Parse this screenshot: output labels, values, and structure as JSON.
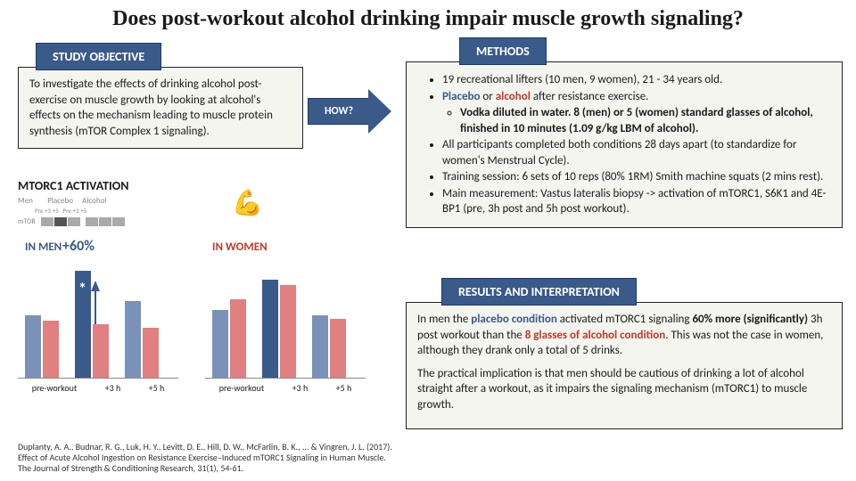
{
  "title": "Does post-workout alcohol drinking impair muscle growth signaling?",
  "headings": {
    "objective": "STUDY OBJECTIVE",
    "methods": "METHODS",
    "results": "RESULTS AND INTERPRETATION",
    "how": "HOW?"
  },
  "objective_text": "To investigate the effects of drinking alcohol post-exercise on muscle growth by looking at alcohol's effects on the mechanism leading to muscle protein synthesis (mTOR Complex 1 signaling).",
  "methods": {
    "m1": "19 recreational lifters (10 men, 9 women), 21 - 34 years old.",
    "m2a": "Placebo",
    "m2b": " or ",
    "m2c": "alcohol",
    "m2d": " after resistance exercise.",
    "m2_sub": "Vodka diluted in water. 8 (men) or 5 (women) standard glasses of alcohol, finished in 10 minutes (1.09 g/kg LBM of alcohol).",
    "m3": "All participants completed both conditions 28 days apart (to standardize for women's Menstrual Cycle).",
    "m4": "Training session: 6 sets of 10 reps (80% 1RM) Smith machine squats (2 mins rest).",
    "m5": "Main measurement: Vastus lateralis biopsy -> activation of mTORC1, S6K1 and 4E-BP1 (pre, 3h post and 5h post workout)."
  },
  "results": {
    "p1a": "In men the ",
    "p1_placebo": "placebo condition",
    "p1b": " activated mTORC1 signaling ",
    "p1_60": "60% more (significantly)",
    "p1c": " 3h post workout than the ",
    "p1_alc": "8 glasses of alcohol condition",
    "p1d": ". This was not the case in women, although they drank only a total of 5 drinks.",
    "p2": "The practical implication is that men should be cautious of drinking a lot of alcohol straight after a workout, as it impairs the signaling mechanism (mTORC1) to muscle growth."
  },
  "chart": {
    "super_label": "MTORC1 ACTIVATION",
    "men_label": "IN MEN",
    "women_label": "IN WOMEN",
    "plus60": "+60%",
    "star": "*",
    "xticks": {
      "t1": "pre-workout",
      "t2": "+3 h",
      "t3": "+5 h"
    },
    "men_bars": {
      "pre_pl": 70,
      "pre_al": 64,
      "h3_pl": 120,
      "h3_al": 60,
      "h5_pl": 86,
      "h5_al": 56
    },
    "women_bars": {
      "pre_pl": 76,
      "pre_al": 88,
      "h3_pl": 110,
      "h3_al": 104,
      "h5_pl": 70,
      "h5_al": 66
    },
    "colors": {
      "placebo": "#7a92b8",
      "placebo_hi": "#3a5a8a",
      "alcohol": "#e08080"
    }
  },
  "western": {
    "men": "Men",
    "mtor": "mTOR",
    "placebo": "Placebo",
    "alcohol": "Alcohol",
    "pre": "Pre",
    "p3": "+3",
    "p5": "+5"
  },
  "citation": "Duplanty, A. A., Budnar, R. G., Luk, H. Y., Levitt, D. E., Hill, D. W., McFarlin, B. K., ... & Vingren, J. L. (2017). Effect of Acute Alcohol Ingestion on Resistance Exercise–Induced mTORC1 Signaling in Human Muscle. The Journal of Strength & Conditioning Research, 31(1), 54-61."
}
